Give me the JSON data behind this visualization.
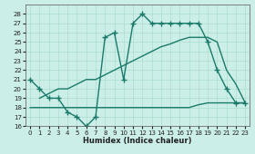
{
  "xlabel": "Humidex (Indice chaleur)",
  "bg_color": "#cceee8",
  "grid_color": "#aaddcc",
  "line_color": "#1a7a6a",
  "line1_x": [
    0,
    1,
    2,
    3,
    4,
    5,
    6,
    7,
    8,
    9,
    10,
    11,
    12,
    13,
    14,
    15,
    16,
    17,
    18,
    19,
    20,
    21,
    22,
    23
  ],
  "line1_y": [
    21,
    20,
    19,
    19,
    17.5,
    17,
    16,
    17,
    25.5,
    26,
    21,
    27,
    28,
    27,
    27,
    27,
    27,
    27,
    27,
    25,
    22,
    20,
    18.5,
    18.5
  ],
  "line2_x": [
    0,
    1,
    2,
    3,
    4,
    5,
    6,
    7,
    8,
    9,
    10,
    11,
    12,
    13,
    14,
    15,
    16,
    17,
    18,
    19,
    20,
    21,
    22,
    23
  ],
  "line2_y": [
    18,
    18,
    18,
    18,
    18,
    18,
    18,
    18,
    18,
    18,
    18,
    18,
    18,
    18,
    18,
    18,
    18,
    18,
    18.3,
    18.5,
    18.5,
    18.5,
    18.5,
    18.5
  ],
  "line3_x": [
    1,
    2,
    3,
    4,
    5,
    6,
    7,
    8,
    9,
    10,
    11,
    12,
    13,
    14,
    15,
    16,
    17,
    18,
    19,
    20,
    21,
    22,
    23
  ],
  "line3_y": [
    19,
    19.5,
    20,
    20,
    20.5,
    21,
    21,
    21.5,
    22,
    22.5,
    23,
    23.5,
    24,
    24.5,
    24.8,
    25.2,
    25.5,
    25.5,
    25.5,
    25,
    22,
    20.5,
    18.5
  ],
  "ylim": [
    16,
    29
  ],
  "xlim": [
    -0.5,
    23.5
  ],
  "yticks": [
    16,
    17,
    18,
    19,
    20,
    21,
    22,
    23,
    24,
    25,
    26,
    27,
    28
  ],
  "xticks": [
    0,
    1,
    2,
    3,
    4,
    5,
    6,
    7,
    8,
    9,
    10,
    11,
    12,
    13,
    14,
    15,
    16,
    17,
    18,
    19,
    20,
    21,
    22,
    23
  ],
  "marker": "+",
  "markersize": 4,
  "linewidth": 1.0
}
